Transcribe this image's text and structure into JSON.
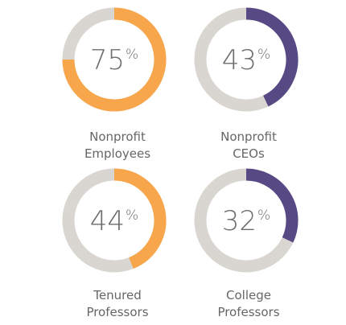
{
  "chart_data": [
    {
      "type": "pie",
      "value": 75,
      "unit": "%",
      "label_lines": [
        "Nonprofit",
        "Employees"
      ],
      "color": "#F7A64B",
      "track_color": "#D9D6D1"
    },
    {
      "type": "pie",
      "value": 43,
      "unit": "%",
      "label_lines": [
        "Nonprofit",
        "CEOs"
      ],
      "color": "#574A84",
      "track_color": "#D9D6D1"
    },
    {
      "type": "pie",
      "value": 44,
      "unit": "%",
      "label_lines": [
        "Tenured",
        "Professors"
      ],
      "color": "#F7A64B",
      "track_color": "#D9D6D1"
    },
    {
      "type": "pie",
      "value": 32,
      "unit": "%",
      "label_lines": [
        "College",
        "Professors"
      ],
      "color": "#574A84",
      "track_color": "#D9D6D1"
    }
  ]
}
